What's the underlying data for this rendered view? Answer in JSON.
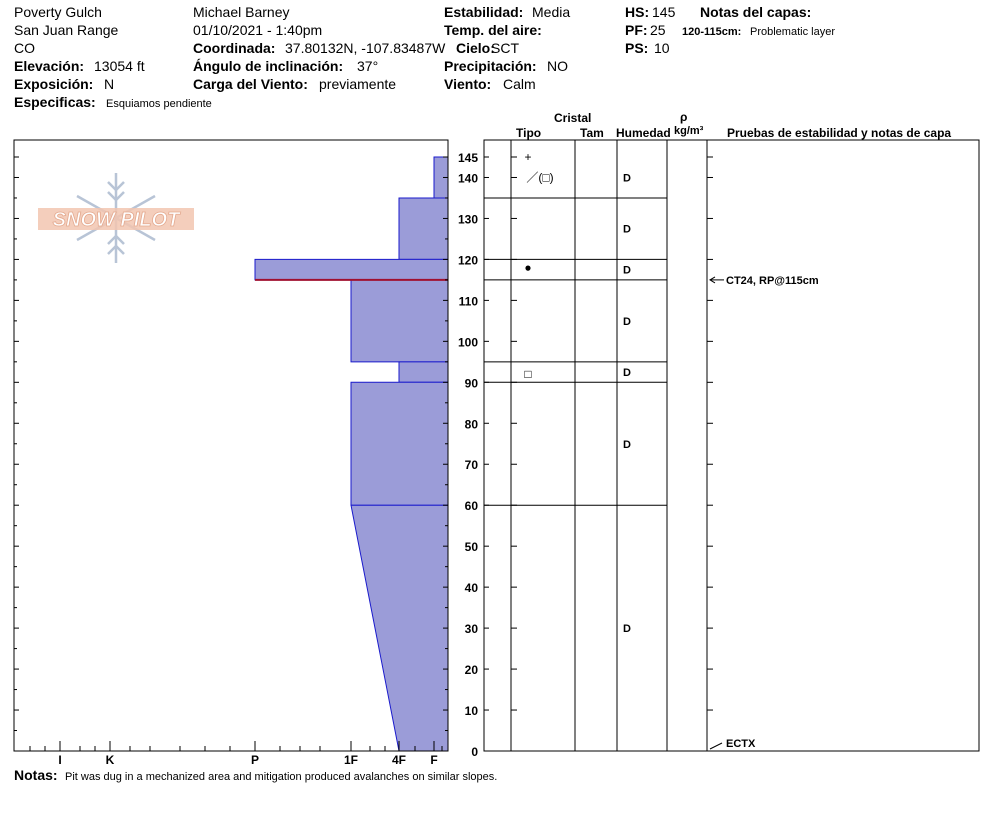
{
  "header": {
    "location": "Poverty Gulch",
    "range": "San Juan Range",
    "state": "CO",
    "elevation_label": "Elevación:",
    "elevation": "13054 ft",
    "aspect_label": "Exposición:",
    "aspect": "N",
    "specifics_label": "Especificas:",
    "specifics": "Esquiamos pendiente",
    "observer": "Michael Barney",
    "datetime": "01/10/2021 - 1:40pm",
    "coord_label": "Coordinada:",
    "coord": "37.80132N, -107.83487W",
    "slope_label": "Ángulo de inclinación:",
    "slope": "37°",
    "wind_load_label": "Carga del Viento:",
    "wind_load": "previamente",
    "stability_label": "Estabilidad:",
    "stability": "Media",
    "air_temp_label": "Temp. del aire:",
    "air_temp": "",
    "sky_label": "Cielo:",
    "sky": "SCT",
    "precip_label": "Precipitación:",
    "precip": "NO",
    "wind_label": "Viento:",
    "wind": "Calm",
    "hs_label": "HS:",
    "hs": "145",
    "pf_label": "PF:",
    "pf": "25",
    "ps_label": "PS:",
    "ps": "10",
    "layer_notes_label": "Notas del capas:",
    "layer_note_range": "120-115cm:",
    "layer_note_text": "Problematic layer"
  },
  "columns": {
    "crystal": "Cristal",
    "type": "Tipo",
    "size": "Tam",
    "moisture": "Humedad",
    "rho": "ρ",
    "density": "kg/m³",
    "tests": "Pruebas de estabilidad y notas de capa"
  },
  "logo": {
    "text": "SNOW PILOT",
    "icon": "snowflake-icon"
  },
  "notes": {
    "label": "Notas:",
    "text": "Pit was dug in a mechanized area and mitigation produced avalanches on similar slopes."
  },
  "chart_data": {
    "type": "snow-profile",
    "y_axis": {
      "label": "",
      "range": [
        0,
        145
      ],
      "ticks": [
        0,
        10,
        20,
        30,
        40,
        50,
        60,
        70,
        80,
        90,
        100,
        110,
        120,
        130,
        140,
        145
      ]
    },
    "x_axis": {
      "hardness_scale": [
        "F",
        "4F",
        "1F",
        "P",
        "K",
        "I"
      ],
      "tick_labels": [
        "I",
        "K",
        "P",
        "1F",
        "4F",
        "F"
      ]
    },
    "layers": [
      {
        "top": 145,
        "bottom": 135,
        "hardness_top": "F",
        "hardness_bottom": "F",
        "grain": "+",
        "moisture": ""
      },
      {
        "top": 135,
        "bottom": 120,
        "hardness_top": "4F",
        "hardness_bottom": "4F",
        "grain": "／(□)",
        "moisture": "D"
      },
      {
        "top": 120,
        "bottom": 115,
        "hardness_top": "P",
        "hardness_bottom": "P",
        "grain": "●",
        "moisture": "D"
      },
      {
        "top": 115,
        "bottom": 95,
        "hardness_top": "1F",
        "hardness_bottom": "1F",
        "grain": "",
        "moisture": "D"
      },
      {
        "top": 95,
        "bottom": 90,
        "hardness_top": "4F",
        "hardness_bottom": "4F",
        "grain": "□",
        "moisture": "D"
      },
      {
        "top": 90,
        "bottom": 60,
        "hardness_top": "1F",
        "hardness_bottom": "1F",
        "grain": "",
        "moisture": "D"
      },
      {
        "top": 60,
        "bottom": 0,
        "hardness_top": "1F",
        "hardness_bottom": "4F",
        "grain": "",
        "moisture": "D"
      }
    ],
    "grain_rows": [
      {
        "label": "+",
        "height": 145
      },
      {
        "label": "／(□)",
        "height": 140
      },
      {
        "label": "●",
        "height": 118
      },
      {
        "label": "□",
        "height": 92
      }
    ],
    "moisture_rows": [
      {
        "label": "D",
        "height": 140
      },
      {
        "label": "D",
        "height": 127.5
      },
      {
        "label": "D",
        "height": 117.5
      },
      {
        "label": "D",
        "height": 105
      },
      {
        "label": "D",
        "height": 92.5
      },
      {
        "label": "D",
        "height": 75
      },
      {
        "label": "D",
        "height": 30
      }
    ],
    "weak_layer_depth": 115,
    "tests": [
      {
        "height": 115,
        "text": "CT24, RP@115cm"
      },
      {
        "height": 0,
        "text": "ECTX"
      }
    ]
  }
}
